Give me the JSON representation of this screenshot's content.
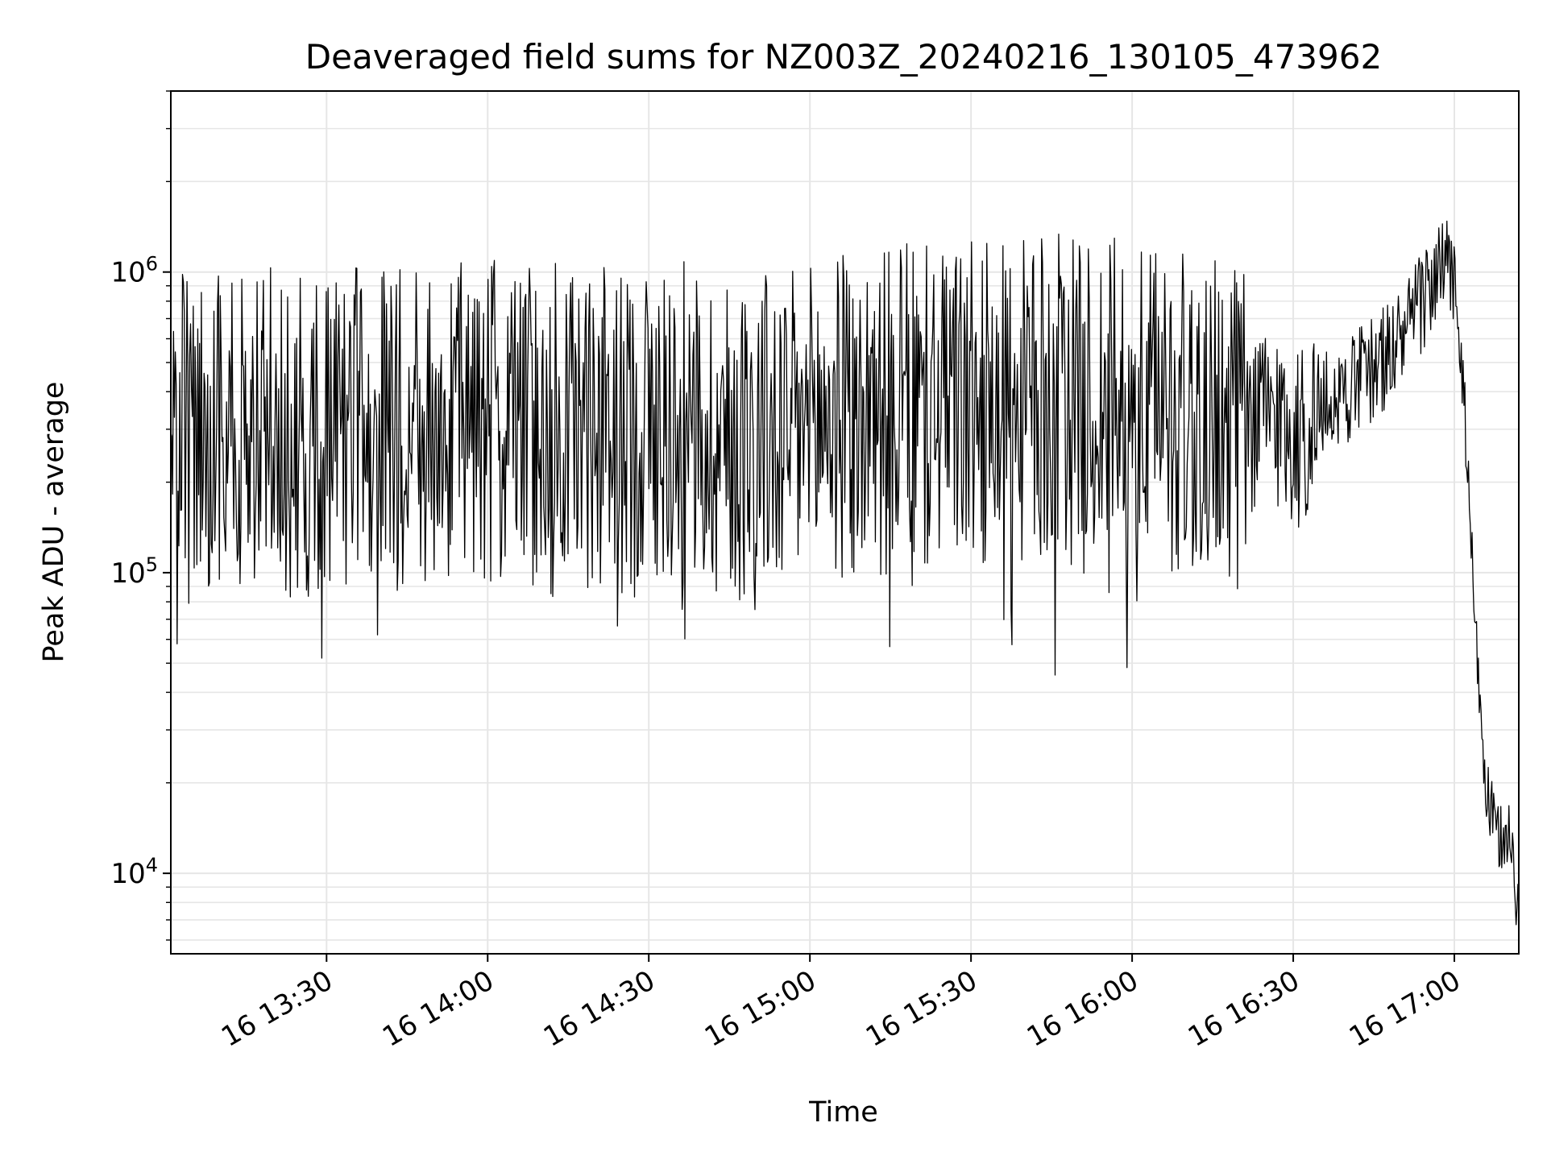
{
  "chart_data": {
    "type": "line",
    "title": "Deaveraged field sums for NZ003Z_20240216_130105_473962",
    "xlabel": "Time",
    "ylabel": "Peak ADU - average",
    "y_scale": "log",
    "ylim": [
      5400,
      4000000
    ],
    "xlim": [
      "16 13:01",
      "16 17:12"
    ],
    "grid": true,
    "x_tick_labels": [
      "16 13:30",
      "16 14:00",
      "16 14:30",
      "16 15:00",
      "16 15:30",
      "16 16:00",
      "16 16:30",
      "16 17:00"
    ],
    "y_ticks": [
      {
        "base": "10",
        "exp": "4",
        "value": 10000
      },
      {
        "base": "10",
        "exp": "5",
        "value": 100000
      },
      {
        "base": "10",
        "exp": "6",
        "value": 1000000
      }
    ],
    "line_color": "#000000",
    "grid_color": "#e6e6e6",
    "series": [
      {
        "x": [
          "16 13:01",
          "16 13:06",
          "16 13:11",
          "16 13:16",
          "16 13:21",
          "16 13:26",
          "16 13:31",
          "16 13:36",
          "16 13:41",
          "16 13:46",
          "16 13:51",
          "16 13:56",
          "16 14:01",
          "16 14:06",
          "16 14:11",
          "16 14:16",
          "16 14:21",
          "16 14:26",
          "16 14:31",
          "16 14:36",
          "16 14:41",
          "16 14:46",
          "16 14:51",
          "16 14:56",
          "16 15:01",
          "16 15:06",
          "16 15:11",
          "16 15:16",
          "16 15:21",
          "16 15:26",
          "16 15:31",
          "16 15:36",
          "16 15:41",
          "16 15:46",
          "16 15:51",
          "16 15:56",
          "16 16:01",
          "16 16:06",
          "16 16:11",
          "16 16:16",
          "16 16:21",
          "16 16:26",
          "16 16:31",
          "16 16:36",
          "16 16:41",
          "16 16:46",
          "16 16:51",
          "16 16:56",
          "16 16:58",
          "16 17:00",
          "16 17:02",
          "16 17:04",
          "16 17:06",
          "16 17:08",
          "16 17:10",
          "16 17:12"
        ],
        "y": [
          300000,
          260000,
          320000,
          280000,
          300000,
          270000,
          310000,
          290000,
          320000,
          280000,
          300000,
          330000,
          310000,
          290000,
          340000,
          320000,
          300000,
          280000,
          330000,
          310000,
          290000,
          270000,
          300000,
          280000,
          310000,
          330000,
          320000,
          360000,
          340000,
          380000,
          350000,
          370000,
          360000,
          390000,
          350000,
          380000,
          340000,
          360000,
          330000,
          350000,
          300000,
          340000,
          280000,
          360000,
          420000,
          500000,
          620000,
          950000,
          1000000,
          980000,
          320000,
          60000,
          18000,
          13000,
          14000,
          7000
        ]
      }
    ]
  }
}
